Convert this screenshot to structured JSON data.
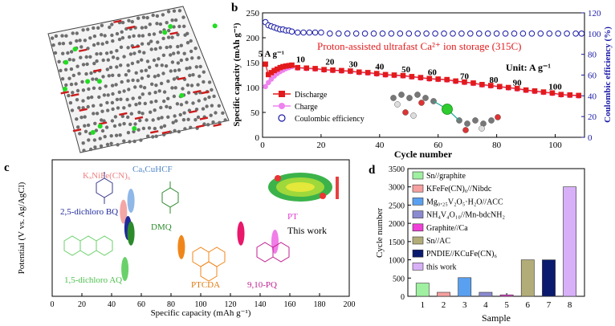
{
  "panels": {
    "b": {
      "letter": "b"
    },
    "c": {
      "letter": "c"
    },
    "d": {
      "letter": "d"
    }
  },
  "chart_data": [
    {
      "panel": "b",
      "type": "scatter",
      "xlabel": "Cycle number",
      "ylabel": "Specific capacity (mAh g⁻¹)",
      "y2label": "Coulombic efficiency (%)",
      "xlim": [
        0,
        110
      ],
      "ylim": [
        0,
        250
      ],
      "y2lim": [
        0,
        120
      ],
      "xticks": [
        0,
        20,
        40,
        60,
        80,
        100
      ],
      "yticks": [
        0,
        50,
        100,
        150,
        200,
        250
      ],
      "y2ticks": [
        0,
        20,
        40,
        60,
        80,
        100,
        120
      ],
      "annotation": "Proton-assisted ultrafast Ca²⁺ ion storage (315C)",
      "unit_label": "Unit: A g⁻¹",
      "rate_labels": [
        {
          "text": "5 A g⁻¹",
          "x": 3,
          "y": 162
        },
        {
          "text": "10",
          "x": 13,
          "y": 151
        },
        {
          "text": "20",
          "x": 23,
          "y": 146
        },
        {
          "text": "30",
          "x": 31,
          "y": 141
        },
        {
          "text": "40",
          "x": 40,
          "y": 136
        },
        {
          "text": "50",
          "x": 49,
          "y": 131
        },
        {
          "text": "60",
          "x": 58,
          "y": 125
        },
        {
          "text": "70",
          "x": 69,
          "y": 117
        },
        {
          "text": "80",
          "x": 79,
          "y": 110
        },
        {
          "text": "90",
          "x": 87,
          "y": 104
        },
        {
          "text": "100",
          "x": 100,
          "y": 96
        }
      ],
      "legend": [
        "Discharge",
        "Charge",
        "Coulombic efficiency"
      ],
      "colors": {
        "discharge": "#e31a1c",
        "charge": "#ee82ee",
        "ce": "#1a1aa6"
      },
      "series": [
        {
          "name": "Discharge",
          "x": [
            1,
            2,
            3,
            4,
            5,
            6,
            7,
            8,
            9,
            10,
            12,
            15,
            18,
            21,
            24,
            27,
            30,
            33,
            36,
            39,
            42,
            45,
            48,
            51,
            54,
            57,
            60,
            63,
            66,
            69,
            72,
            75,
            78,
            81,
            84,
            87,
            90,
            93,
            96,
            99,
            102,
            105,
            108
          ],
          "y": [
            147,
            126,
            130,
            134,
            137,
            140,
            142,
            143,
            144,
            145,
            140,
            139,
            138,
            136,
            135,
            134,
            133,
            131,
            130,
            128,
            126,
            125,
            124,
            122,
            120,
            118,
            117,
            116,
            113,
            111,
            109,
            106,
            104,
            102,
            100,
            98,
            95,
            93,
            91,
            89,
            86,
            85,
            84
          ]
        },
        {
          "name": "Charge",
          "x": [
            1,
            2,
            3,
            4,
            5,
            6,
            7,
            8,
            9,
            10,
            12,
            15,
            18,
            21,
            24,
            27,
            30,
            33,
            36,
            39,
            42,
            45,
            48,
            51,
            54,
            57,
            60,
            63,
            66,
            69,
            72,
            75,
            78,
            81,
            84,
            87,
            90,
            93,
            96,
            99,
            102,
            105,
            108
          ],
          "y": [
            102,
            110,
            117,
            123,
            128,
            132,
            135,
            138,
            140,
            142,
            139,
            138,
            137,
            135,
            134,
            133,
            132,
            130,
            129,
            127,
            125,
            124,
            123,
            121,
            119,
            117,
            116,
            115,
            112,
            110,
            108,
            105,
            103,
            101,
            99,
            97,
            94,
            92,
            90,
            88,
            85,
            84,
            83
          ]
        },
        {
          "name": "Coulombic efficiency",
          "x": [
            1,
            2,
            3,
            4,
            5,
            6,
            7,
            8,
            9,
            10,
            12,
            14,
            16,
            18,
            20,
            23,
            26,
            29,
            32,
            35,
            38,
            41,
            44,
            47,
            50,
            53,
            56,
            59,
            62,
            65,
            68,
            71,
            74,
            77,
            80,
            83,
            86,
            89,
            92,
            95,
            98,
            101,
            104,
            107,
            109
          ],
          "y": [
            111,
            108,
            107,
            106,
            105,
            104,
            104,
            103,
            103,
            102,
            101,
            101,
            101,
            101,
            101,
            100,
            100,
            100,
            100,
            100,
            100,
            100,
            100,
            100,
            100,
            100,
            100,
            100,
            100,
            100,
            100,
            100,
            100,
            100,
            100,
            100,
            100,
            100,
            100,
            100,
            100,
            100,
            100,
            100,
            100
          ]
        }
      ]
    },
    {
      "panel": "c",
      "type": "scatter",
      "xlabel": "Specific capacity (mAh g⁻¹)",
      "ylabel": "Potential (V vs. Ag/AgCl)",
      "xlim": [
        0,
        200
      ],
      "xticks": [
        0,
        20,
        40,
        60,
        80,
        100,
        120,
        140,
        160,
        180,
        200
      ],
      "points": [
        {
          "label": "KₓNiFe(CN)₆",
          "x": 48,
          "y": 0.62,
          "color": "#f4a6a6"
        },
        {
          "label": "CaₓCuHCF",
          "x": 53,
          "y": 0.7,
          "color": "#8fb8e8"
        },
        {
          "label": "2,5-dichloro BQ",
          "x": 51,
          "y": 0.5,
          "color": "#1f2a9c"
        },
        {
          "label": "DMQ",
          "x": 53,
          "y": 0.46,
          "color": "#2c8a2c"
        },
        {
          "label": "1,5-dichloro AQ",
          "x": 49,
          "y": 0.2,
          "color": "#6ad16a"
        },
        {
          "label": "PTCDA",
          "x": 87,
          "y": 0.36,
          "color": "#f0861a"
        },
        {
          "label": "9,10-PQ",
          "x": 127,
          "y": 0.46,
          "color": "#e8186b"
        },
        {
          "label": "PT",
          "x": 150,
          "y": 0.4,
          "color": "#f07de8"
        }
      ],
      "this_work": "This work",
      "pt_label": "PT"
    },
    {
      "panel": "d",
      "type": "bar",
      "xlabel": "Sample",
      "ylabel": "Cycle number",
      "ylim": [
        0,
        3500
      ],
      "yticks": [
        0,
        500,
        1000,
        1500,
        2000,
        2500,
        3000,
        3500
      ],
      "categories": [
        "1",
        "2",
        "3",
        "4",
        "5",
        "6",
        "7",
        "8"
      ],
      "values": [
        360,
        110,
        510,
        110,
        40,
        1000,
        1000,
        3000
      ],
      "colors": [
        "#9ff0a0",
        "#f6a0a0",
        "#5aa0f0",
        "#8a8ad0",
        "#f040d8",
        "#b2ac78",
        "#0a1a6e",
        "#d8b0f8"
      ],
      "legend": [
        "Sn//graphite",
        "KFeFe(CN)₆//Nibdc",
        "Mg₀.₂₅V₂O₅·H₂O//ACC",
        "NH₄V₄O₁₀//Mn-bdcNH₂",
        "Graphite//Ca",
        "Sn//AC",
        "PNDIE//KCuFe(CN)₆",
        "this work"
      ]
    }
  ]
}
